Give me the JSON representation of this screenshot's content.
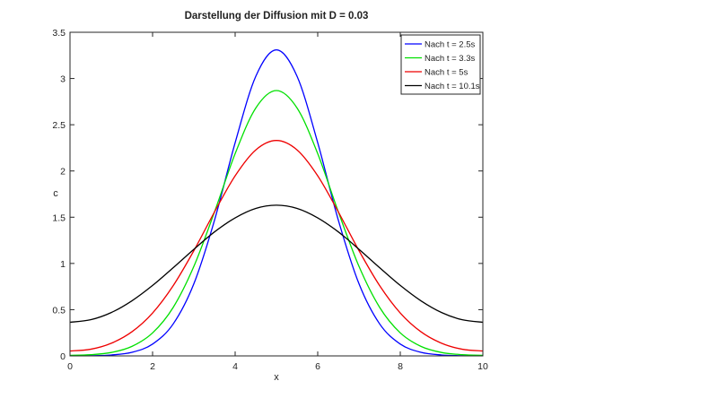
{
  "chart_data": {
    "type": "line",
    "title": "Darstellung der Diffusion mit D = 0.03",
    "xlabel": "x",
    "ylabel": "c",
    "xlim": [
      0,
      10
    ],
    "ylim": [
      0,
      3.5
    ],
    "xticks": [
      "0",
      "2",
      "4",
      "6",
      "8",
      "10"
    ],
    "yticks": [
      "0",
      "0.5",
      "1",
      "1.5",
      "2",
      "2.5",
      "3",
      "3.5"
    ],
    "grid": false,
    "legend_position": "top-right",
    "x": [
      0,
      0.5,
      1,
      1.5,
      2,
      2.5,
      3,
      3.5,
      4,
      4.5,
      5,
      5.5,
      6,
      6.5,
      7,
      7.5,
      8,
      8.5,
      9,
      9.5,
      10
    ],
    "series": [
      {
        "name": "Nach t = 2.5s",
        "color": "#0000ff",
        "values": [
          0.001,
          0.002,
          0.01,
          0.039,
          0.128,
          0.346,
          0.78,
          1.467,
          2.306,
          3.024,
          3.31,
          3.024,
          2.306,
          1.467,
          0.78,
          0.346,
          0.128,
          0.039,
          0.01,
          0.002,
          0.001
        ]
      },
      {
        "name": "Nach t = 3.3s",
        "color": "#00e000",
        "values": [
          0.006,
          0.013,
          0.037,
          0.103,
          0.249,
          0.525,
          0.968,
          1.557,
          2.187,
          2.681,
          2.87,
          2.681,
          2.187,
          1.557,
          0.968,
          0.525,
          0.249,
          0.103,
          0.037,
          0.013,
          0.006
        ]
      },
      {
        "name": "Nach t = 5s",
        "color": "#ee0000",
        "values": [
          0.053,
          0.072,
          0.137,
          0.261,
          0.464,
          0.76,
          1.138,
          1.557,
          1.948,
          2.228,
          2.33,
          2.228,
          1.948,
          1.557,
          1.138,
          0.76,
          0.464,
          0.261,
          0.137,
          0.072,
          0.053
        ]
      },
      {
        "name": "Nach t = 10.1s",
        "color": "#000000",
        "values": [
          0.364,
          0.391,
          0.469,
          0.596,
          0.762,
          0.954,
          1.153,
          1.341,
          1.493,
          1.595,
          1.63,
          1.595,
          1.493,
          1.341,
          1.153,
          0.954,
          0.762,
          0.596,
          0.469,
          0.391,
          0.364
        ]
      }
    ]
  }
}
